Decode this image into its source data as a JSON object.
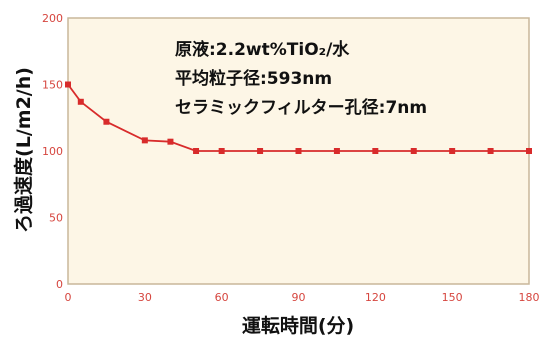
{
  "chart_data": {
    "type": "line",
    "title": "",
    "xlabel": "運転時間(分)",
    "ylabel": "ろ過速度(L/m2/h)",
    "xlim": [
      0,
      180
    ],
    "ylim": [
      0,
      200
    ],
    "x_ticks": [
      0,
      30,
      60,
      90,
      120,
      150,
      180
    ],
    "y_ticks": [
      0,
      50,
      100,
      150,
      200
    ],
    "grid": false,
    "annotations": [
      "原液:2.2wt%TiO₂/水",
      "平均粒子径:593nm",
      "セラミックフィルター孔径:7nm"
    ],
    "series": [
      {
        "name": "",
        "color": "#d82b2b",
        "x": [
          0,
          5,
          15,
          30,
          40,
          50,
          60,
          75,
          90,
          105,
          120,
          135,
          150,
          165,
          180
        ],
        "y": [
          150,
          137,
          122,
          108,
          107,
          100,
          100,
          100,
          100,
          100,
          100,
          100,
          100,
          100,
          100
        ]
      }
    ]
  },
  "colors": {
    "plot_background": "#fdf6e6",
    "frame": "#c9b79a",
    "tick_text": "#d6463f",
    "line": "#d82b2b"
  }
}
